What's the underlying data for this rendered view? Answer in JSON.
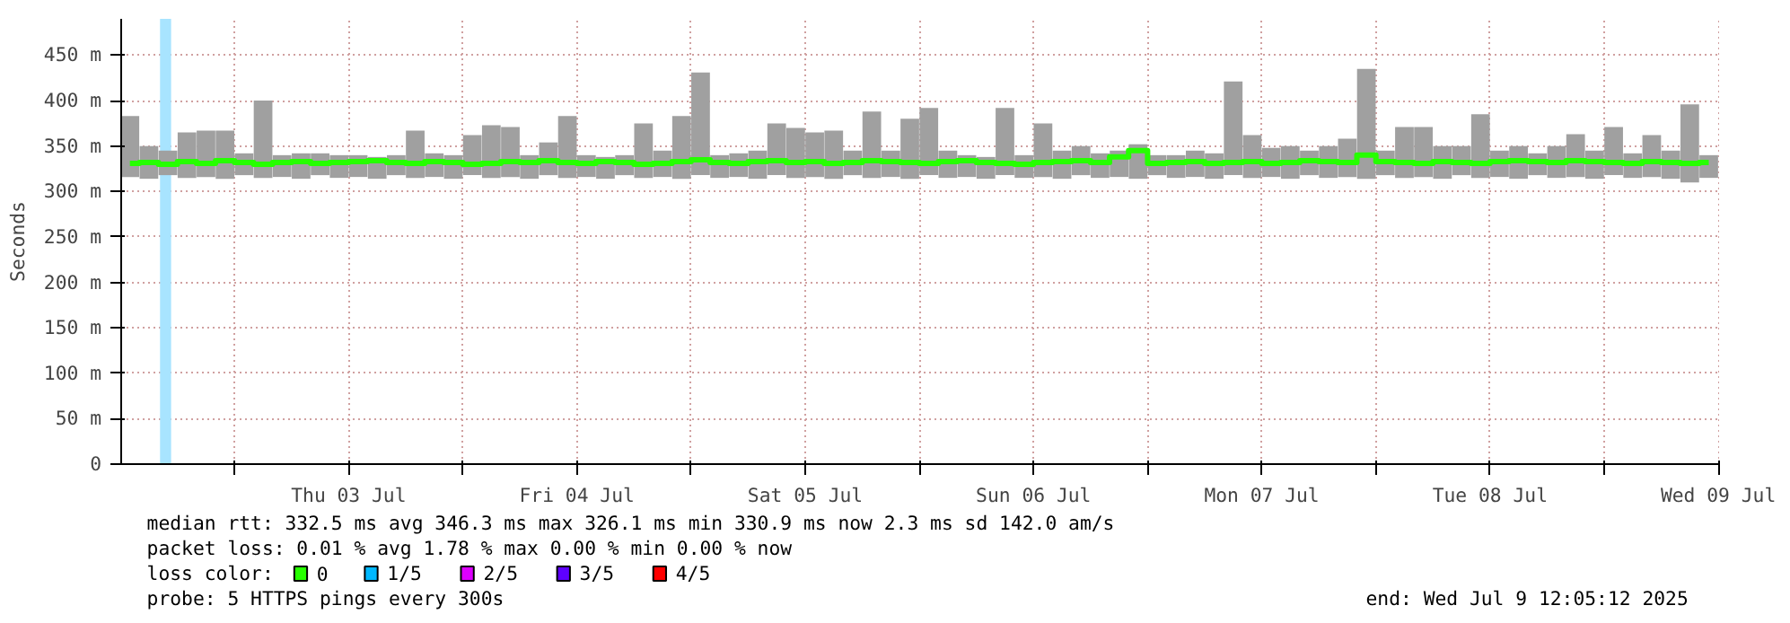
{
  "chart_data": {
    "type": "bar",
    "ylabel": "Seconds",
    "x": [
      "2025-07-02T13:00",
      "2025-07-02T15:00",
      "2025-07-02T17:00",
      "2025-07-02T19:00",
      "2025-07-02T21:00",
      "2025-07-02T23:00",
      "2025-07-03T01:00",
      "2025-07-03T03:00",
      "2025-07-03T05:00",
      "2025-07-03T07:00",
      "2025-07-03T09:00",
      "2025-07-03T11:00",
      "2025-07-03T13:00",
      "2025-07-03T15:00",
      "2025-07-03T17:00",
      "2025-07-03T19:00",
      "2025-07-03T21:00",
      "2025-07-03T23:00",
      "2025-07-04T01:00",
      "2025-07-04T03:00",
      "2025-07-04T05:00",
      "2025-07-04T07:00",
      "2025-07-04T09:00",
      "2025-07-04T11:00",
      "2025-07-04T13:00",
      "2025-07-04T15:00",
      "2025-07-04T17:00",
      "2025-07-04T19:00",
      "2025-07-04T21:00",
      "2025-07-04T23:00",
      "2025-07-05T01:00",
      "2025-07-05T03:00",
      "2025-07-05T05:00",
      "2025-07-05T07:00",
      "2025-07-05T09:00",
      "2025-07-05T11:00",
      "2025-07-05T13:00",
      "2025-07-05T15:00",
      "2025-07-05T17:00",
      "2025-07-05T19:00",
      "2025-07-05T21:00",
      "2025-07-05T23:00",
      "2025-07-06T01:00",
      "2025-07-06T03:00",
      "2025-07-06T05:00",
      "2025-07-06T07:00",
      "2025-07-06T09:00",
      "2025-07-06T11:00",
      "2025-07-06T13:00",
      "2025-07-06T15:00",
      "2025-07-06T17:00",
      "2025-07-06T19:00",
      "2025-07-06T21:00",
      "2025-07-06T23:00",
      "2025-07-07T01:00",
      "2025-07-07T03:00",
      "2025-07-07T05:00",
      "2025-07-07T07:00",
      "2025-07-07T09:00",
      "2025-07-07T11:00",
      "2025-07-07T13:00",
      "2025-07-07T15:00",
      "2025-07-07T17:00",
      "2025-07-07T19:00",
      "2025-07-07T21:00",
      "2025-07-07T23:00",
      "2025-07-08T01:00",
      "2025-07-08T03:00",
      "2025-07-08T05:00",
      "2025-07-08T07:00",
      "2025-07-08T09:00",
      "2025-07-08T11:00",
      "2025-07-08T13:00",
      "2025-07-08T15:00",
      "2025-07-08T17:00",
      "2025-07-08T19:00",
      "2025-07-08T21:00",
      "2025-07-08T23:00",
      "2025-07-09T01:00",
      "2025-07-09T03:00",
      "2025-07-09T05:00",
      "2025-07-09T07:00",
      "2025-07-09T09:00",
      "2025-07-09T11:00"
    ],
    "series": [
      {
        "color": "#a0a0a0",
        "base": [
          316,
          314,
          318,
          315,
          316,
          314,
          318,
          315,
          316,
          314,
          318,
          315,
          316,
          314,
          318,
          315,
          316,
          314,
          318,
          315,
          316,
          314,
          318,
          315,
          316,
          314,
          318,
          315,
          316,
          314,
          318,
          315,
          316,
          314,
          318,
          315,
          316,
          314,
          318,
          315,
          316,
          314,
          318,
          315,
          316,
          314,
          318,
          315,
          316,
          314,
          318,
          315,
          316,
          314,
          318,
          315,
          316,
          314,
          318,
          315,
          316,
          314,
          318,
          315,
          316,
          314,
          318,
          315,
          316,
          314,
          318,
          315,
          316,
          314,
          318,
          315,
          316,
          314,
          318,
          315,
          316,
          314,
          310,
          315
        ],
        "values": [
          67,
          36,
          27,
          50,
          51,
          53,
          24,
          85,
          24,
          28,
          24,
          25,
          24,
          24,
          22,
          52,
          26,
          26,
          44,
          58,
          55,
          26,
          36,
          68,
          24,
          24,
          22,
          60,
          29,
          69,
          113,
          25,
          26,
          31,
          57,
          55,
          49,
          53,
          27,
          73,
          29,
          66,
          74,
          30,
          24,
          24,
          74,
          25,
          59,
          31,
          32,
          27,
          29,
          38,
          22,
          25,
          29,
          28,
          103,
          47,
          32,
          36,
          27,
          35,
          42,
          121,
          27,
          56,
          55,
          36,
          32,
          70,
          29,
          36,
          24,
          35,
          47,
          31,
          53,
          27,
          46,
          31,
          86,
          25
        ]
      },
      {
        "type": "step",
        "name": "0",
        "color": "#26ff00",
        "values": [
          331,
          332,
          330,
          333,
          331,
          334,
          332,
          330,
          332,
          333,
          331,
          332,
          333,
          334,
          332,
          331,
          333,
          332,
          330,
          331,
          333,
          332,
          334,
          332,
          331,
          333,
          332,
          330,
          331,
          333,
          335,
          332,
          331,
          333,
          334,
          332,
          333,
          331,
          332,
          334,
          333,
          332,
          331,
          333,
          334,
          332,
          331,
          330,
          332,
          333,
          334,
          332,
          338,
          345,
          331,
          332,
          333,
          331,
          332,
          333,
          331,
          332,
          334,
          333,
          332,
          340,
          333,
          332,
          331,
          333,
          332,
          331,
          333,
          334,
          333,
          332,
          334,
          333,
          332,
          331,
          333,
          332,
          331,
          332
        ]
      },
      {
        "type": "step",
        "name": "1/5",
        "color": "#00b8ff",
        "values": [
          null,
          null,
          null,
          null,
          null,
          null,
          null,
          null,
          null,
          null,
          null,
          null,
          null,
          null,
          null,
          null,
          null,
          null,
          null,
          null,
          null,
          null,
          null,
          null,
          null,
          null,
          null,
          null,
          null,
          null,
          null,
          null,
          null,
          null,
          null,
          null,
          null,
          null,
          null,
          null,
          null,
          null,
          null,
          null,
          null,
          null,
          null,
          null,
          null,
          null,
          null,
          null,
          null,
          null,
          null,
          null,
          null,
          null,
          null,
          null,
          null,
          null,
          null,
          null,
          null,
          null,
          null,
          null,
          null,
          null,
          null,
          null,
          null,
          null,
          null,
          null,
          null,
          null,
          null,
          null,
          null,
          null,
          null,
          null
        ]
      },
      {
        "type": "step",
        "name": "2/5",
        "color": "#dd00ff",
        "values": [
          null,
          null,
          null,
          null,
          null,
          null,
          null,
          null,
          null,
          null,
          null,
          null,
          null,
          null,
          null,
          null,
          null,
          null,
          null,
          null,
          null,
          null,
          null,
          null,
          null,
          null,
          null,
          null,
          null,
          null,
          null,
          null,
          null,
          null,
          null,
          null,
          null,
          null,
          null,
          null,
          null,
          null,
          null,
          null,
          null,
          null,
          null,
          null,
          null,
          null,
          null,
          null,
          null,
          null,
          null,
          null,
          null,
          null,
          null,
          null,
          null,
          null,
          null,
          null,
          null,
          null,
          null,
          null,
          null,
          null,
          null,
          null,
          null,
          null,
          null,
          null,
          null,
          null,
          null,
          null,
          null,
          null,
          null,
          null
        ]
      },
      {
        "type": "step",
        "name": "3/5",
        "color": "#5e00ff",
        "values": [
          null,
          null,
          null,
          null,
          null,
          null,
          null,
          null,
          null,
          null,
          null,
          null,
          null,
          null,
          null,
          null,
          null,
          null,
          null,
          null,
          null,
          null,
          null,
          null,
          null,
          null,
          null,
          null,
          null,
          null,
          null,
          null,
          null,
          null,
          null,
          null,
          null,
          null,
          null,
          null,
          null,
          null,
          null,
          null,
          null,
          null,
          null,
          null,
          null,
          null,
          null,
          null,
          null,
          null,
          null,
          null,
          null,
          null,
          null,
          null,
          null,
          null,
          null,
          null,
          null,
          null,
          null,
          null,
          null,
          null,
          null,
          null,
          null,
          null,
          null,
          null,
          null,
          null,
          null,
          null,
          null,
          null,
          null,
          null
        ]
      },
      {
        "type": "step",
        "name": "4/5",
        "color": "#ff0000",
        "values": [
          null,
          null,
          null,
          null,
          null,
          null,
          null,
          null,
          null,
          null,
          null,
          null,
          null,
          null,
          null,
          null,
          null,
          null,
          null,
          null,
          null,
          null,
          null,
          null,
          null,
          null,
          null,
          null,
          null,
          null,
          null,
          null,
          null,
          null,
          null,
          null,
          null,
          null,
          null,
          null,
          null,
          null,
          null,
          null,
          null,
          null,
          null,
          null,
          null,
          null,
          null,
          null,
          null,
          null,
          null,
          null,
          null,
          null,
          null,
          null,
          null,
          null,
          null,
          null,
          null,
          null,
          null,
          null,
          null,
          null,
          null,
          null,
          null,
          null,
          null,
          null,
          null,
          null,
          null,
          null,
          null,
          null,
          null,
          null
        ]
      }
    ],
    "bands": [
      {
        "axis": "x",
        "from": "2025-07-02T16:10",
        "to": "2025-07-02T17:20",
        "color": "#a8e4ff"
      }
    ],
    "xlim": [
      "2025-07-02T12:05",
      "2025-07-09T12:05"
    ],
    "xticks": [
      {
        "value": "2025-07-03T00:00",
        "label": null
      },
      {
        "value": "2025-07-03T12:00",
        "label": "Thu 03 Jul"
      },
      {
        "value": "2025-07-04T00:00",
        "label": null
      },
      {
        "value": "2025-07-04T12:00",
        "label": "Fri 04 Jul"
      },
      {
        "value": "2025-07-05T00:00",
        "label": null
      },
      {
        "value": "2025-07-05T12:00",
        "label": "Sat 05 Jul"
      },
      {
        "value": "2025-07-06T00:00",
        "label": null
      },
      {
        "value": "2025-07-06T12:00",
        "label": "Sun 06 Jul"
      },
      {
        "value": "2025-07-07T00:00",
        "label": null
      },
      {
        "value": "2025-07-07T12:00",
        "label": "Mon 07 Jul"
      },
      {
        "value": "2025-07-08T00:00",
        "label": null
      },
      {
        "value": "2025-07-08T12:00",
        "label": "Tue 08 Jul"
      },
      {
        "value": "2025-07-09T00:00",
        "label": null
      },
      {
        "value": "2025-07-09T12:00",
        "label": "Wed 09 Jul"
      }
    ],
    "ylim": [
      0,
      490
    ],
    "yticks": [
      0,
      {
        "value": 50,
        "label": "50 m"
      },
      {
        "value": 100,
        "label": "100 m"
      },
      {
        "value": 150,
        "label": "150 m"
      },
      {
        "value": 200,
        "label": "200 m"
      },
      {
        "value": 250,
        "label": "250 m"
      },
      {
        "value": 300,
        "label": "300 m"
      },
      {
        "value": 350,
        "label": "350 m"
      },
      {
        "value": 400,
        "label": "400 m"
      },
      {
        "value": 450,
        "label": "450 m"
      }
    ],
    "grid": true,
    "legend": "bottom",
    "legend_title": "loss color:",
    "annotations": [
      "median rtt:  332.5 ms avg  346.3 ms max  326.1 ms min  330.9 ms now  2.3 ms sd  142.0   am/s",
      "packet loss: 0.01 % avg  1.78 % max  0.00 % min  0.00 % now",
      "probe:       5 HTTPS pings every 300s",
      "end: Wed Jul  9 12:05:12 2025"
    ]
  }
}
